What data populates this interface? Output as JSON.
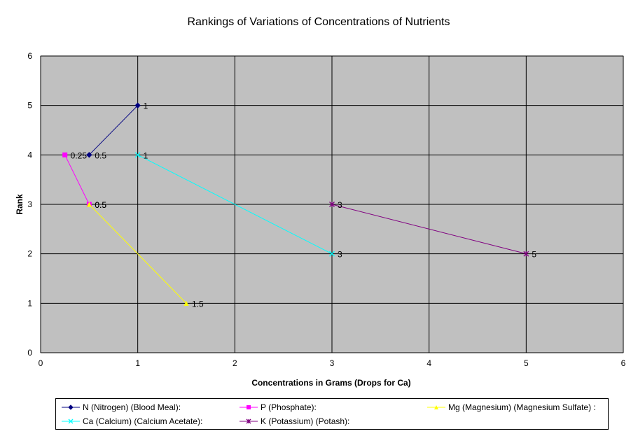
{
  "chart_data": {
    "type": "line",
    "title": "Rankings of Variations of Concentrations of Nutrients",
    "xlabel": "Concentrations in Grams (Drops for Ca)",
    "ylabel": "Rank",
    "xlim": [
      0,
      6
    ],
    "ylim": [
      0,
      6
    ],
    "xticks": [
      0,
      1,
      2,
      3,
      4,
      5,
      6
    ],
    "yticks": [
      0,
      1,
      2,
      3,
      4,
      5,
      6
    ],
    "grid": true,
    "plot_background": "#c0c0c0",
    "legend_position": "bottom",
    "series": [
      {
        "name": "N (Nitrogen) (Blood Meal):",
        "color": "#000080",
        "marker": "diamond",
        "points": [
          {
            "x": 0.5,
            "y": 4,
            "label": "0.5"
          },
          {
            "x": 1,
            "y": 5,
            "label": "1"
          }
        ]
      },
      {
        "name": "P (Phosphate):",
        "color": "#ff00ff",
        "marker": "square",
        "points": [
          {
            "x": 0.25,
            "y": 4,
            "label": "0.25"
          },
          {
            "x": 0.5,
            "y": 3,
            "label": "0.5"
          }
        ]
      },
      {
        "name": "Mg (Magnesium) (Magnesium Sulfate) :",
        "color": "#ffff00",
        "marker": "triangle",
        "points": [
          {
            "x": 0.5,
            "y": 3,
            "label": "0.5"
          },
          {
            "x": 1.5,
            "y": 1,
            "label": "1.5"
          }
        ]
      },
      {
        "name": "Ca (Calcium) (Calcium Acetate):",
        "color": "#00ffff",
        "marker": "x",
        "points": [
          {
            "x": 1,
            "y": 4,
            "label": "1"
          },
          {
            "x": 3,
            "y": 2,
            "label": "3"
          }
        ]
      },
      {
        "name": "K (Potassium) (Potash):",
        "color": "#800080",
        "marker": "star",
        "points": [
          {
            "x": 3,
            "y": 3,
            "label": "3"
          },
          {
            "x": 5,
            "y": 2,
            "label": "5"
          }
        ]
      }
    ]
  }
}
